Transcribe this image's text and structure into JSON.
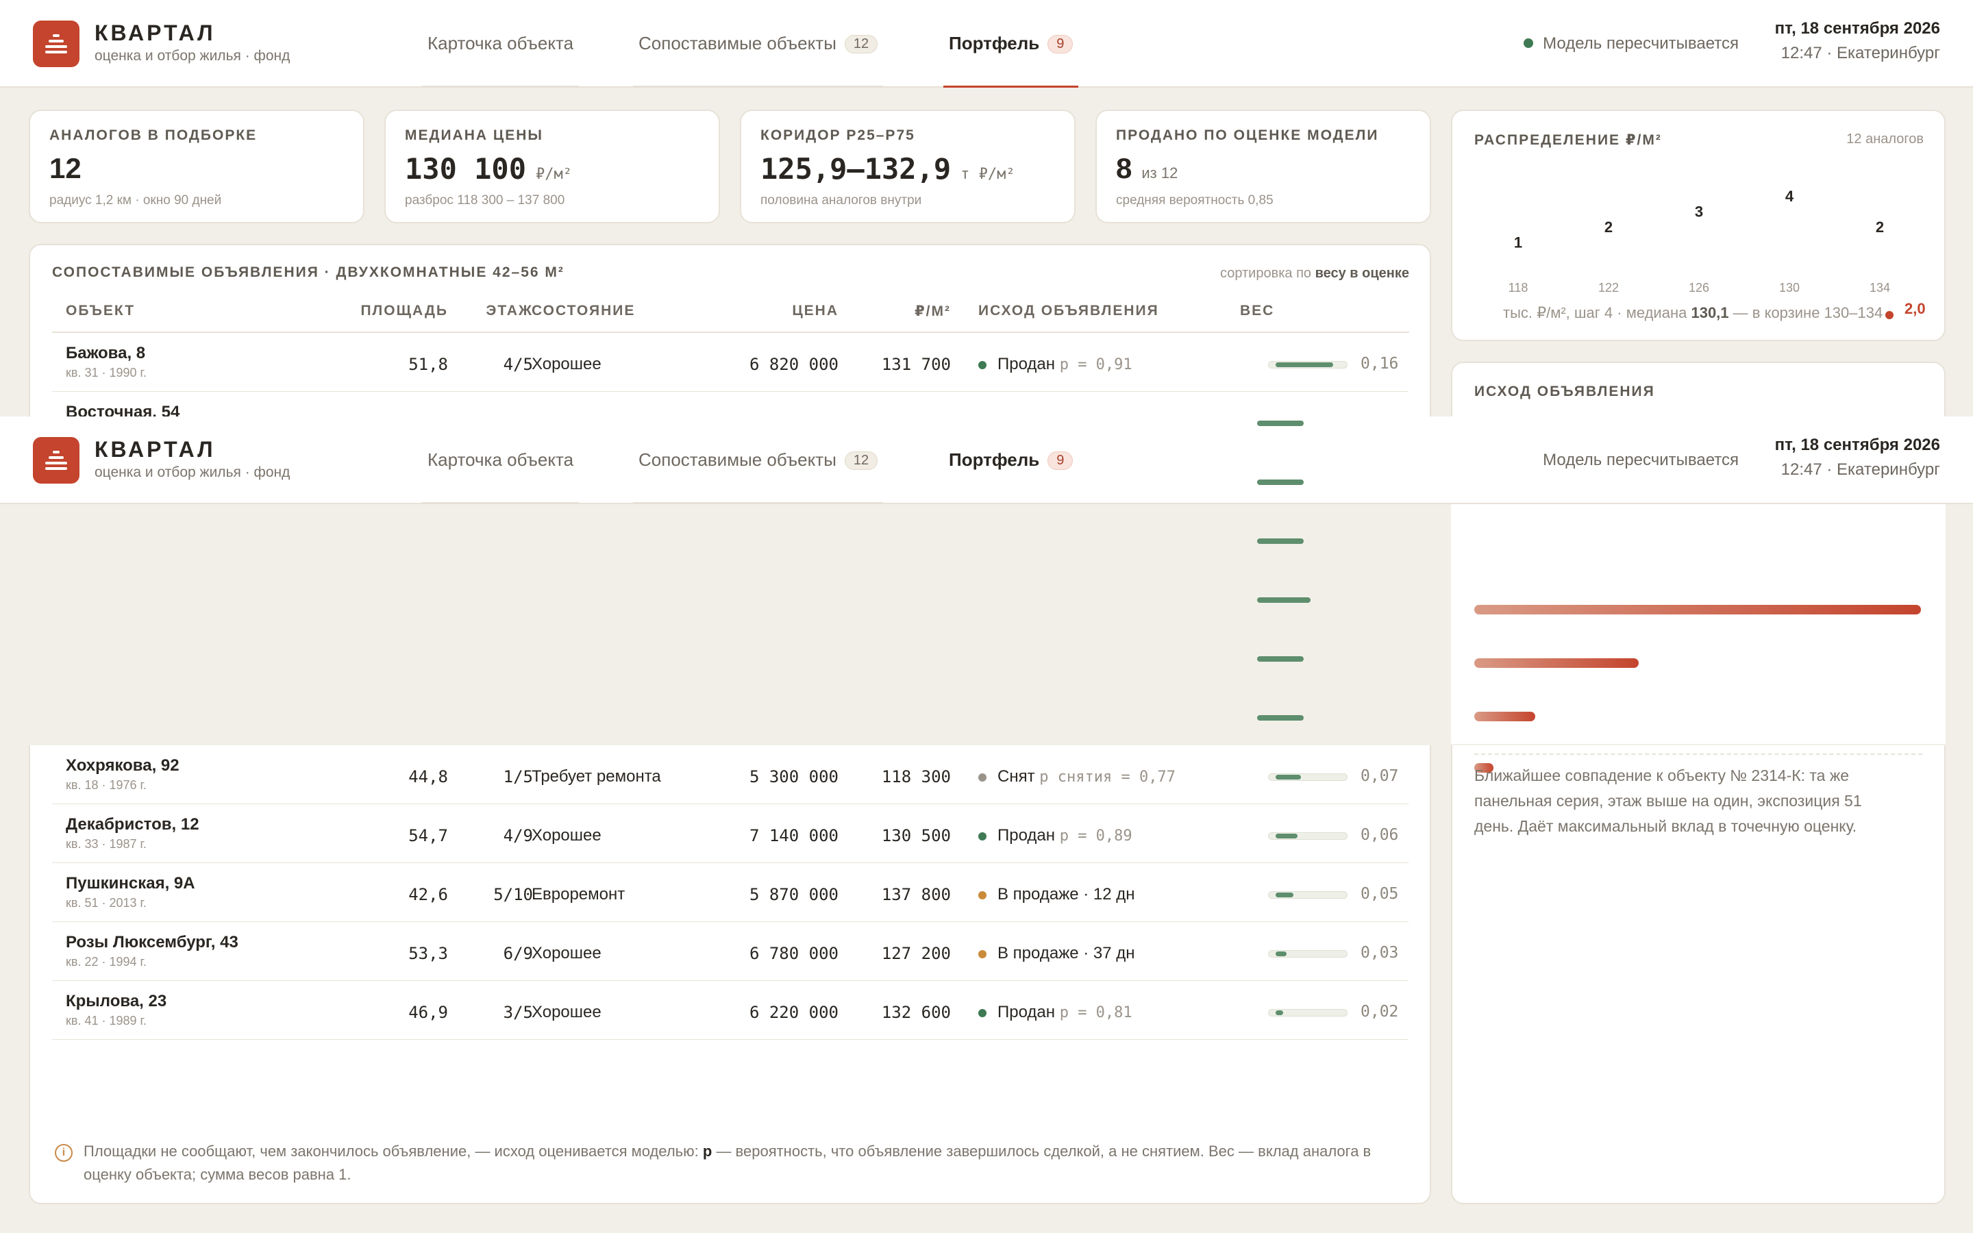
{
  "app": {
    "name": "КВАРТАЛ",
    "subtitle": "оценка и отбор жилья · фонд"
  },
  "tabs": [
    {
      "label": "Карточка объекта",
      "count": null
    },
    {
      "label": "Сопоставимые объекты",
      "count": "12"
    },
    {
      "label": "Портфель",
      "count": "9"
    }
  ],
  "status": {
    "text": "Модель пересчитывается",
    "color": "#3f7a55"
  },
  "datetime": {
    "date": "пт, 18 сентября 2026",
    "time": "12:47 · Екатеринбург"
  },
  "kpis": [
    {
      "label": "АНАЛОГОВ В ПОДБОРКЕ",
      "value": "12",
      "unit": "",
      "sub": "радиус 1,2 км · окно 90 дней"
    },
    {
      "label": "МЕДИАНА ЦЕНЫ",
      "value": "130 100",
      "unit": "₽/м²",
      "sub": "разброс 118 300 – 137 800"
    },
    {
      "label": "КОРИДОР P25–P75",
      "value": "125,9–132,9",
      "unit": "т ₽/м²",
      "sub": "половина аналогов внутри"
    },
    {
      "label": "ПРОДАНО ПО ОЦЕНКЕ МОДЕЛИ",
      "value": "8",
      "unit": "из 12",
      "sub": "средняя вероятность 0,85"
    }
  ],
  "table": {
    "title": "СОПОСТАВИМЫЕ ОБЪЯВЛЕНИЯ · ДВУХКОМНАТНЫЕ 42–56 М²",
    "sort_prefix": "сортировка по",
    "sort_key": "весу в оценке",
    "columns": [
      "ОБЪЕКТ",
      "ПЛОЩАДЬ",
      "ЭТАЖ",
      "СОСТОЯНИЕ",
      "ЦЕНА",
      "₽/М²",
      "ИСХОД ОБЪЯВЛЕНИЯ",
      "ВЕС"
    ],
    "rows_top": [
      {
        "address": "Бажова, 8",
        "meta": "кв. 31 · 1990 г.",
        "area": "51,8",
        "floor": "4/5",
        "condition": "Хорошее",
        "price": "6 820 000",
        "ppm": "131 700",
        "outcome": "Продан",
        "prob": "p = 0,91",
        "outcome_color": "#3f7a55",
        "weight": "0,16",
        "weight_fill": 0.16
      },
      {
        "address": "Восточная, 54",
        "meta": "",
        "area": "",
        "floor": "",
        "condition": "",
        "price": "",
        "ppm": "",
        "outcome": "",
        "prob": "",
        "outcome_color": "",
        "weight": "",
        "weight_fill": 0
      }
    ],
    "rows": [
      {
        "address": "Хохрякова, 92",
        "meta": "кв. 18 · 1976 г.",
        "area": "44,8",
        "floor": "1/5",
        "condition": "Требует ремонта",
        "price": "5 300 000",
        "ppm": "118 300",
        "outcome": "Снят",
        "prob": "p снятия = 0,77",
        "outcome_color": "#9a938a",
        "weight": "0,07",
        "weight_fill": 0.07
      },
      {
        "address": "Декабристов, 12",
        "meta": "кв. 33 · 1987 г.",
        "area": "54,7",
        "floor": "4/9",
        "condition": "Хорошее",
        "price": "7 140 000",
        "ppm": "130 500",
        "outcome": "Продан",
        "prob": "p = 0,89",
        "outcome_color": "#3f7a55",
        "weight": "0,06",
        "weight_fill": 0.06
      },
      {
        "address": "Пушкинская, 9А",
        "meta": "кв. 51 · 2013 г.",
        "area": "42,6",
        "floor": "5/10",
        "condition": "Евроремонт",
        "price": "5 870 000",
        "ppm": "137 800",
        "outcome": "В продаже · 12 дн",
        "prob": "",
        "outcome_color": "#c98a3a",
        "weight": "0,05",
        "weight_fill": 0.05
      },
      {
        "address": "Розы Люксембург, 43",
        "meta": "кв. 22 · 1994 г.",
        "area": "53,3",
        "floor": "6/9",
        "condition": "Хорошее",
        "price": "6 780 000",
        "ppm": "127 200",
        "outcome": "В продаже · 37 дн",
        "prob": "",
        "outcome_color": "#c98a3a",
        "weight": "0,03",
        "weight_fill": 0.03
      },
      {
        "address": "Крылова, 23",
        "meta": "кв. 41 · 1989 г.",
        "area": "46,9",
        "floor": "3/5",
        "condition": "Хорошее",
        "price": "6 220 000",
        "ppm": "132 600",
        "outcome": "Продан",
        "prob": "p = 0,81",
        "outcome_color": "#3f7a55",
        "weight": "0,02",
        "weight_fill": 0.02
      }
    ],
    "note_prefix": "Площадки не сообщают, чем закончилось объявление, — исход оценивается моделью:",
    "note_p": "p",
    "note_suffix": "— вероятность, что объявление завершилось сделкой, а не снятием. Вес — вклад аналога в оценку объекта; сумма весов равна 1."
  },
  "distribution": {
    "title": "РАСПРЕДЕЛЕНИЕ ₽/М²",
    "count": "12 аналогов",
    "caption_prefix": "тыс. ₽/м², шаг 4 · медиана",
    "median": "130,1",
    "caption_suffix": "— в корзине 130–134",
    "marker_label": "2,0",
    "chart_data": {
      "type": "bar",
      "categories": [
        "118",
        "122",
        "126",
        "130",
        "134"
      ],
      "values": [
        1,
        2,
        3,
        4,
        2
      ],
      "xlabel": "тыс. ₽/м², шаг 4",
      "ylabel": ""
    }
  },
  "outcome_panel": {
    "title": "ИСХОД ОБЪЯВЛЕНИЯ",
    "bars": [
      0.95,
      0.35,
      0.13,
      0.04
    ],
    "nearest": "Ближайшее совпадение к объекту № 2314-К: та же панельная серия, этаж выше на один, экспозиция 51 день. Даёт максимальный вклад в точечную оценку."
  }
}
